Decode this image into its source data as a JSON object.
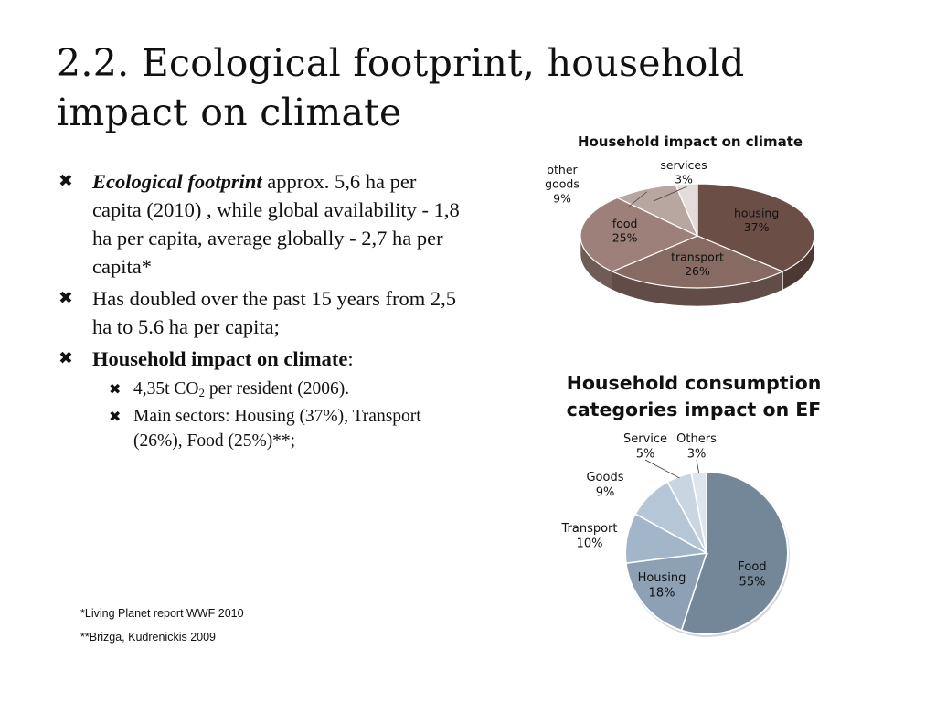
{
  "slide": {
    "title_line1": "2.2. Ecological footprint, household",
    "title_line2": "impact on climate"
  },
  "bullets": [
    {
      "lead": "Ecological footprint",
      "text": " approx. 5,6 ha per capita (2010) , while global availability - 1,8 ha per capita, average globally - 2,7 ha per capita*"
    },
    {
      "lead": "",
      "text": "Has doubled over the past 15 years from 2,5 ha to 5.6 ha per capita;"
    },
    {
      "lead": "Household impact on climate",
      "text": ":"
    }
  ],
  "sub_bullets": [
    {
      "pre": "4,35t CO",
      "sub": "2",
      "post": " per resident (2006)."
    },
    {
      "pre": "Main sectors: Housing (37%), Transport (26%), Food (25%)**;",
      "sub": "",
      "post": ""
    }
  ],
  "bullet_symbol": "✖",
  "footnotes": [
    "*Living Planet report WWF 2010",
    "**Brizga, Kudrenickis 2009"
  ],
  "chart_data": [
    {
      "type": "pie",
      "style": "3d",
      "title": "Household impact on climate",
      "categories": [
        "housing",
        "transport",
        "food",
        "other goods",
        "services"
      ],
      "values": [
        37,
        26,
        25,
        9,
        3
      ],
      "labels": [
        "37%",
        "26%",
        "25%",
        "9%",
        "3%"
      ],
      "colors": [
        "#6b4f47",
        "#876a62",
        "#9c8079",
        "#b8a6a1",
        "#e3dcda"
      ]
    },
    {
      "type": "pie",
      "title": "Household consumption categories impact on EF",
      "categories": [
        "Food",
        "Housing",
        "Transport",
        "Goods",
        "Service",
        "Others"
      ],
      "values": [
        55,
        18,
        10,
        9,
        5,
        3
      ],
      "labels": [
        "55%",
        "18%",
        "10%",
        "9%",
        "5%",
        "3%"
      ],
      "colors": [
        "#738799",
        "#8ea1b4",
        "#a3b6c9",
        "#b5c6d6",
        "#c9d6e2",
        "#dde6ee"
      ]
    }
  ]
}
